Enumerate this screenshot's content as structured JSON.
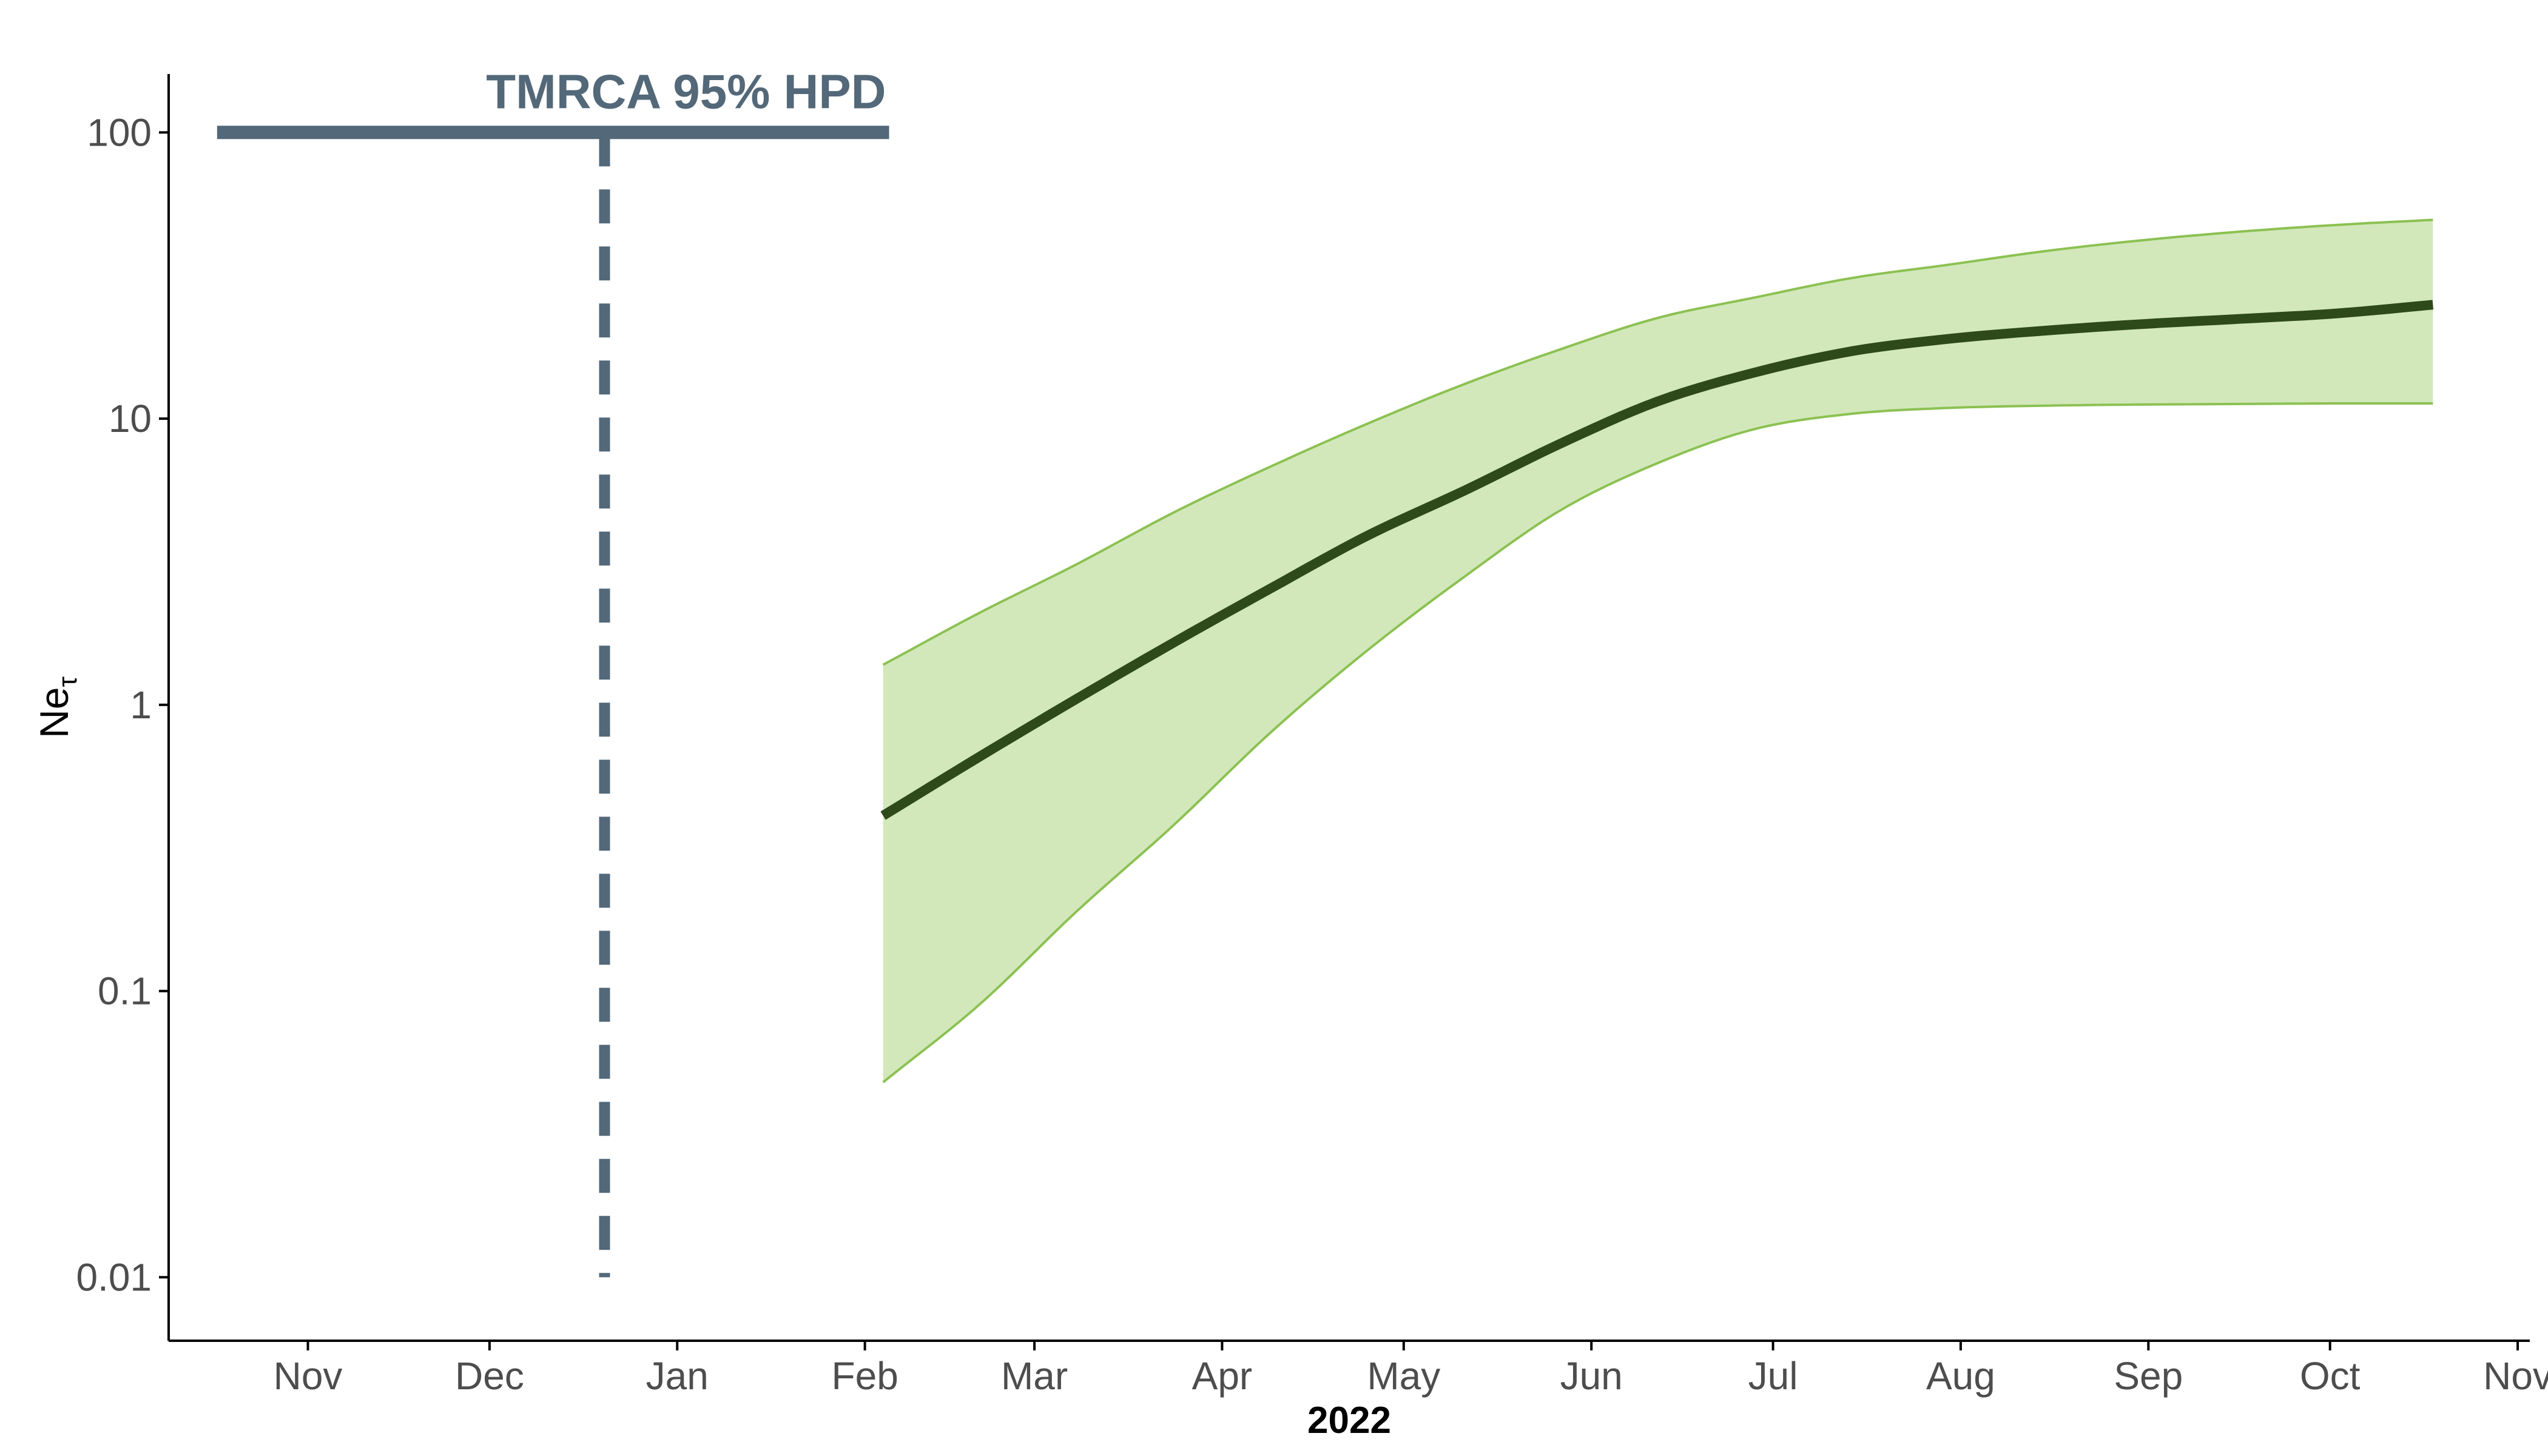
{
  "chart_data": {
    "type": "area",
    "title": "",
    "xlabel": "2022",
    "ylabel": "Ne",
    "ylabel_subscript": "τ",
    "y_scale": "log10",
    "ylim": [
      0.006,
      160
    ],
    "xlim": [
      "2021-10-09",
      "2022-11-03"
    ],
    "x_tick_dates": [
      "2021-11-01",
      "2021-12-01",
      "2022-01-01",
      "2022-02-01",
      "2022-03-01",
      "2022-04-01",
      "2022-05-01",
      "2022-06-01",
      "2022-07-01",
      "2022-08-01",
      "2022-09-01",
      "2022-10-01",
      "2022-11-01"
    ],
    "x_tick_labels": [
      "Nov",
      "Dec",
      "Jan",
      "Feb",
      "Mar",
      "Apr",
      "May",
      "Jun",
      "Jul",
      "Aug",
      "Sep",
      "Oct",
      "Nov"
    ],
    "y_ticks": [
      0.01,
      0.1,
      1,
      10,
      100
    ],
    "y_tick_labels": [
      "0.01",
      "0.1",
      "1",
      "10",
      "100"
    ],
    "grid": false,
    "legend": "none",
    "series": [
      {
        "x": [
          "2022-02-04",
          "2022-02-20",
          "2022-03-08",
          "2022-03-24",
          "2022-04-09",
          "2022-04-25",
          "2022-05-11",
          "2022-05-27",
          "2022-06-12",
          "2022-06-28",
          "2022-07-14",
          "2022-07-30",
          "2022-08-15",
          "2022-08-31",
          "2022-09-16",
          "2022-10-02",
          "2022-10-18"
        ],
        "median": [
          0.41,
          0.66,
          1.05,
          1.65,
          2.55,
          3.9,
          5.6,
          8.2,
          11.5,
          14.5,
          17.2,
          19.0,
          20.3,
          21.4,
          22.3,
          23.3,
          25.0
        ],
        "lower": [
          0.048,
          0.09,
          0.19,
          0.38,
          0.8,
          1.55,
          2.8,
          4.8,
          7.0,
          9.2,
          10.4,
          10.9,
          11.1,
          11.2,
          11.25,
          11.3,
          11.3
        ],
        "upper": [
          1.38,
          2.1,
          3.1,
          4.7,
          6.8,
          9.6,
          13.2,
          17.5,
          22.5,
          26.5,
          31.0,
          34.5,
          38.5,
          42.0,
          45.0,
          47.5,
          49.5
        ]
      }
    ],
    "colors": {
      "band_fill": "#d2e8bb",
      "band_edge": "#8cc152",
      "median_line": "#2f4a1a",
      "annotation": "#536878",
      "axis": "#000000",
      "tick_text": "#4d4d4d"
    },
    "annotation": {
      "label": "TMRCA 95% HPD",
      "hpd_range": [
        "2021-10-17",
        "2022-02-05"
      ],
      "y": 100,
      "point_estimate": "2021-12-20",
      "dashed_from": 100,
      "dashed_to": 0.01
    }
  }
}
